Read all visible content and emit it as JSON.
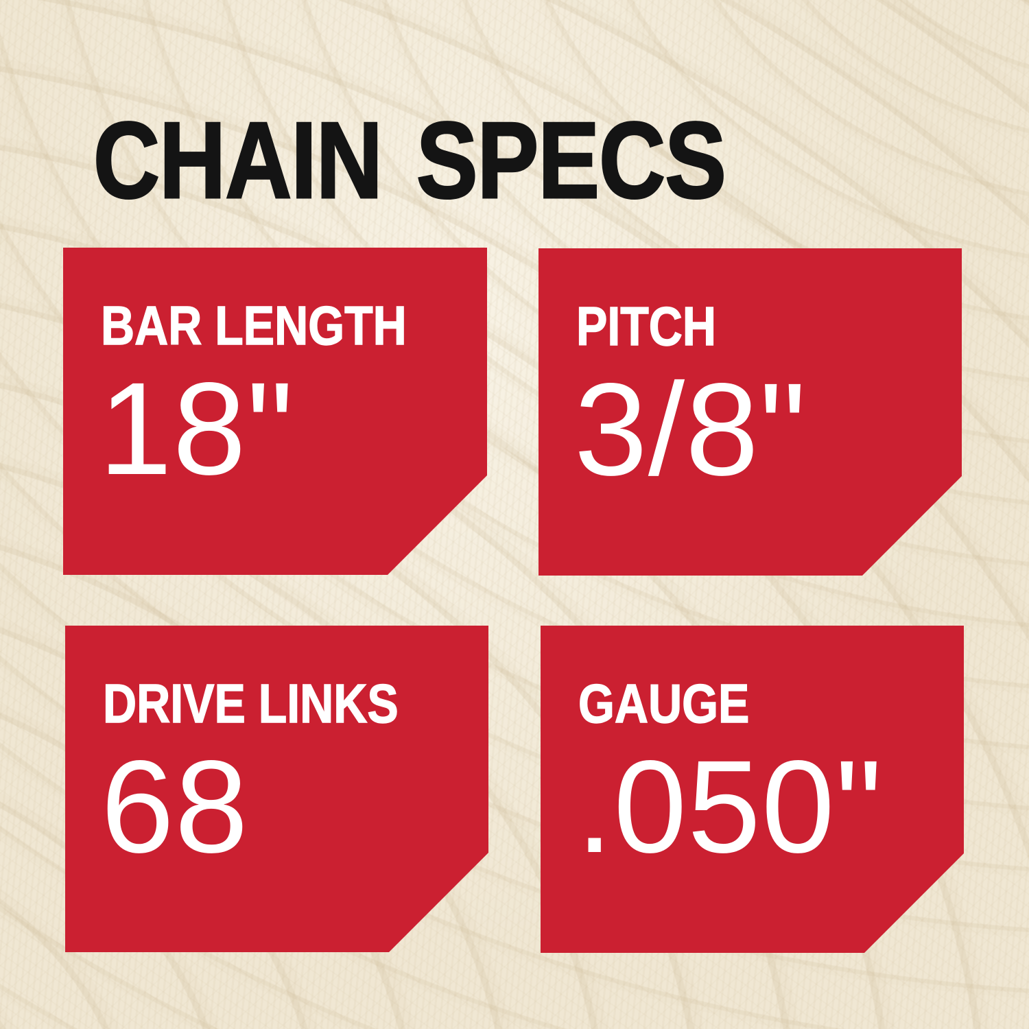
{
  "page": {
    "title": "CHAIN SPECS"
  },
  "theme": {
    "background": "#f0e7d3",
    "card_red": "#cb2031",
    "title_color": "#141414",
    "card_text": "#ffffff"
  },
  "specs": [
    {
      "id": "bar-length",
      "label": "BAR LENGTH",
      "value": "18\""
    },
    {
      "id": "pitch",
      "label": "PITCH",
      "value": "3/8\""
    },
    {
      "id": "drive-links",
      "label": "DRIVE LINKS",
      "value": "68"
    },
    {
      "id": "gauge",
      "label": "GAUGE",
      "value": ".050\""
    }
  ]
}
